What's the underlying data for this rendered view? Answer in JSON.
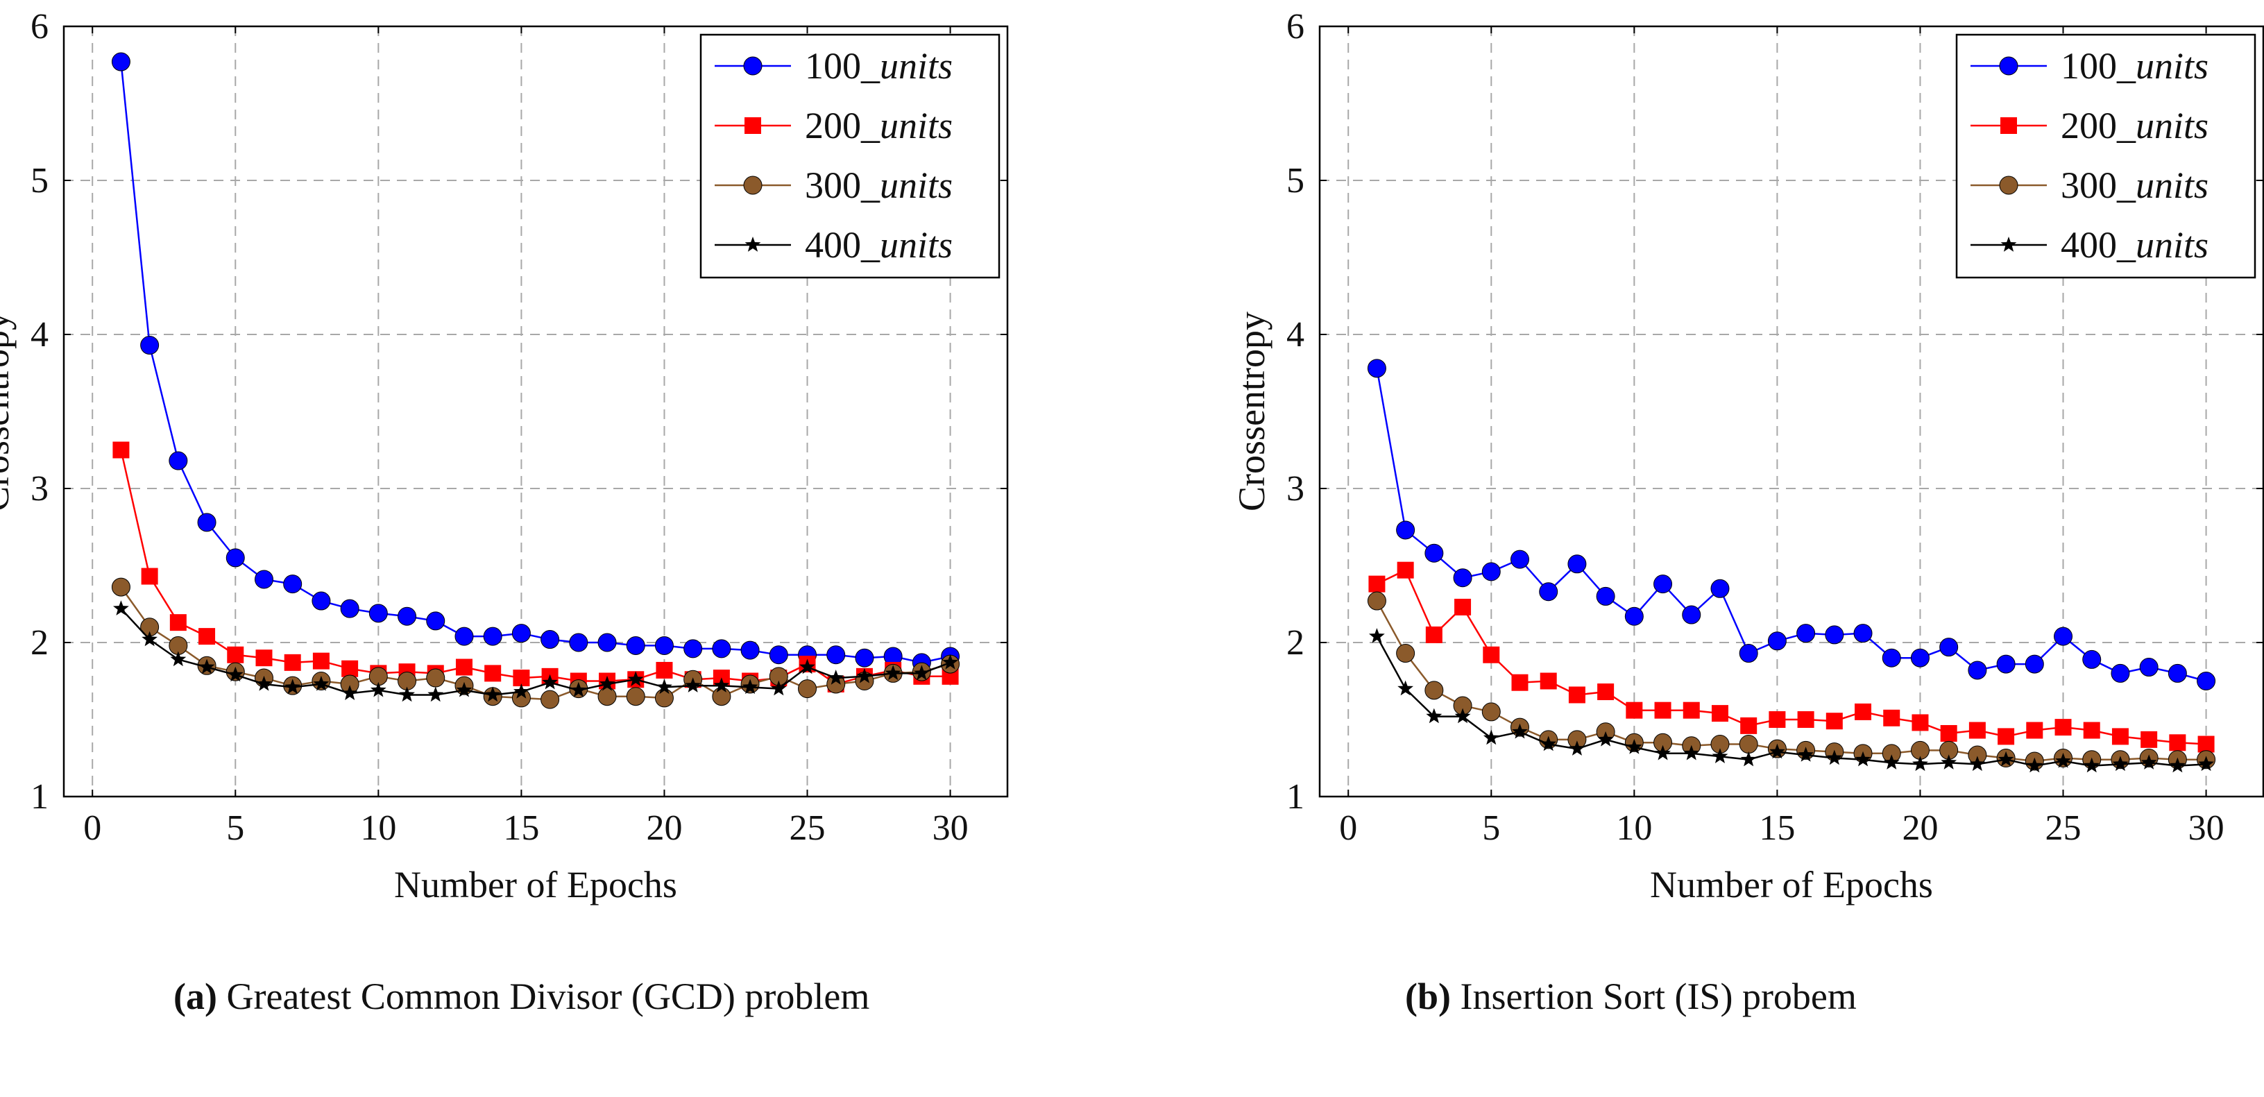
{
  "chart_data": [
    {
      "type": "line",
      "id": "a",
      "caption_tag": "(a)",
      "caption_text": "Greatest Common Divisor (GCD) problem",
      "xlabel": "Number of Epochs",
      "ylabel": "Crossentropy",
      "xlim": [
        -1,
        32
      ],
      "ylim": [
        1,
        6
      ],
      "xticks": [
        0,
        5,
        10,
        15,
        20,
        25,
        30
      ],
      "yticks": [
        1,
        2,
        3,
        4,
        5,
        6
      ],
      "grid": true,
      "legend_position": "top-right",
      "x": [
        1,
        2,
        3,
        4,
        5,
        6,
        7,
        8,
        9,
        10,
        11,
        12,
        13,
        14,
        15,
        16,
        17,
        18,
        19,
        20,
        21,
        22,
        23,
        24,
        25,
        26,
        27,
        28,
        29,
        30
      ],
      "series": [
        {
          "name": "100_",
          "name_italic": "units",
          "color": "#0000ff",
          "marker": "circle",
          "values": [
            5.77,
            3.93,
            3.18,
            2.78,
            2.55,
            2.41,
            2.38,
            2.27,
            2.22,
            2.19,
            2.17,
            2.14,
            2.04,
            2.04,
            2.06,
            2.02,
            2.0,
            2.0,
            1.98,
            1.98,
            1.96,
            1.96,
            1.95,
            1.92,
            1.92,
            1.92,
            1.9,
            1.91,
            1.87,
            1.91
          ]
        },
        {
          "name": "200_",
          "name_italic": "units",
          "color": "#ff0000",
          "marker": "square",
          "values": [
            3.25,
            2.43,
            2.13,
            2.04,
            1.92,
            1.9,
            1.87,
            1.88,
            1.83,
            1.8,
            1.81,
            1.8,
            1.84,
            1.8,
            1.77,
            1.78,
            1.75,
            1.75,
            1.76,
            1.82,
            1.76,
            1.77,
            1.75,
            1.77,
            1.86,
            1.73,
            1.78,
            1.82,
            1.78,
            1.78
          ]
        },
        {
          "name": "300_",
          "name_italic": "units",
          "color": "#8b5a2b",
          "marker": "circle",
          "values": [
            2.36,
            2.1,
            1.98,
            1.85,
            1.81,
            1.77,
            1.72,
            1.75,
            1.73,
            1.78,
            1.75,
            1.77,
            1.72,
            1.65,
            1.64,
            1.63,
            1.7,
            1.65,
            1.65,
            1.64,
            1.76,
            1.65,
            1.73,
            1.78,
            1.7,
            1.73,
            1.75,
            1.8,
            1.81,
            1.86
          ]
        },
        {
          "name": "400_",
          "name_italic": "units",
          "color": "#000000",
          "marker": "star",
          "values": [
            2.22,
            2.02,
            1.89,
            1.84,
            1.79,
            1.73,
            1.71,
            1.73,
            1.67,
            1.69,
            1.66,
            1.66,
            1.69,
            1.66,
            1.68,
            1.74,
            1.69,
            1.73,
            1.76,
            1.71,
            1.72,
            1.72,
            1.71,
            1.7,
            1.84,
            1.77,
            1.78,
            1.8,
            1.8,
            1.87
          ]
        }
      ]
    },
    {
      "type": "line",
      "id": "b",
      "caption_tag": "(b)",
      "caption_text": "Insertion Sort (IS) probem",
      "xlabel": "Number of Epochs",
      "ylabel": "Crossentropy",
      "xlim": [
        -1,
        32
      ],
      "ylim": [
        1,
        6
      ],
      "xticks": [
        0,
        5,
        10,
        15,
        20,
        25,
        30
      ],
      "yticks": [
        1,
        2,
        3,
        4,
        5,
        6
      ],
      "grid": true,
      "legend_position": "top-right",
      "x": [
        1,
        2,
        3,
        4,
        5,
        6,
        7,
        8,
        9,
        10,
        11,
        12,
        13,
        14,
        15,
        16,
        17,
        18,
        19,
        20,
        21,
        22,
        23,
        24,
        25,
        26,
        27,
        28,
        29,
        30
      ],
      "series": [
        {
          "name": "100_",
          "name_italic": "units",
          "color": "#0000ff",
          "marker": "circle",
          "values": [
            3.78,
            2.73,
            2.58,
            2.42,
            2.46,
            2.54,
            2.33,
            2.51,
            2.3,
            2.17,
            2.38,
            2.18,
            2.35,
            1.93,
            2.01,
            2.06,
            2.05,
            2.06,
            1.9,
            1.9,
            1.97,
            1.82,
            1.86,
            1.86,
            2.04,
            1.89,
            1.8,
            1.84,
            1.8,
            1.75
          ]
        },
        {
          "name": "200_",
          "name_italic": "units",
          "color": "#ff0000",
          "marker": "square",
          "values": [
            2.38,
            2.47,
            2.05,
            2.23,
            1.92,
            1.74,
            1.75,
            1.66,
            1.68,
            1.56,
            1.56,
            1.56,
            1.54,
            1.46,
            1.5,
            1.5,
            1.49,
            1.55,
            1.51,
            1.48,
            1.41,
            1.43,
            1.39,
            1.43,
            1.45,
            1.43,
            1.39,
            1.37,
            1.35,
            1.34
          ]
        },
        {
          "name": "300_",
          "name_italic": "units",
          "color": "#8b5a2b",
          "marker": "circle",
          "values": [
            2.27,
            1.93,
            1.69,
            1.59,
            1.55,
            1.45,
            1.37,
            1.37,
            1.42,
            1.35,
            1.35,
            1.33,
            1.34,
            1.34,
            1.31,
            1.3,
            1.29,
            1.28,
            1.28,
            1.3,
            1.3,
            1.27,
            1.25,
            1.23,
            1.25,
            1.24,
            1.24,
            1.25,
            1.24,
            1.24
          ]
        },
        {
          "name": "400_",
          "name_italic": "units",
          "color": "#000000",
          "marker": "star",
          "values": [
            2.04,
            1.7,
            1.52,
            1.52,
            1.38,
            1.42,
            1.34,
            1.31,
            1.37,
            1.32,
            1.28,
            1.28,
            1.26,
            1.24,
            1.29,
            1.27,
            1.25,
            1.24,
            1.22,
            1.21,
            1.22,
            1.21,
            1.24,
            1.2,
            1.23,
            1.2,
            1.21,
            1.22,
            1.2,
            1.21
          ]
        }
      ]
    }
  ]
}
